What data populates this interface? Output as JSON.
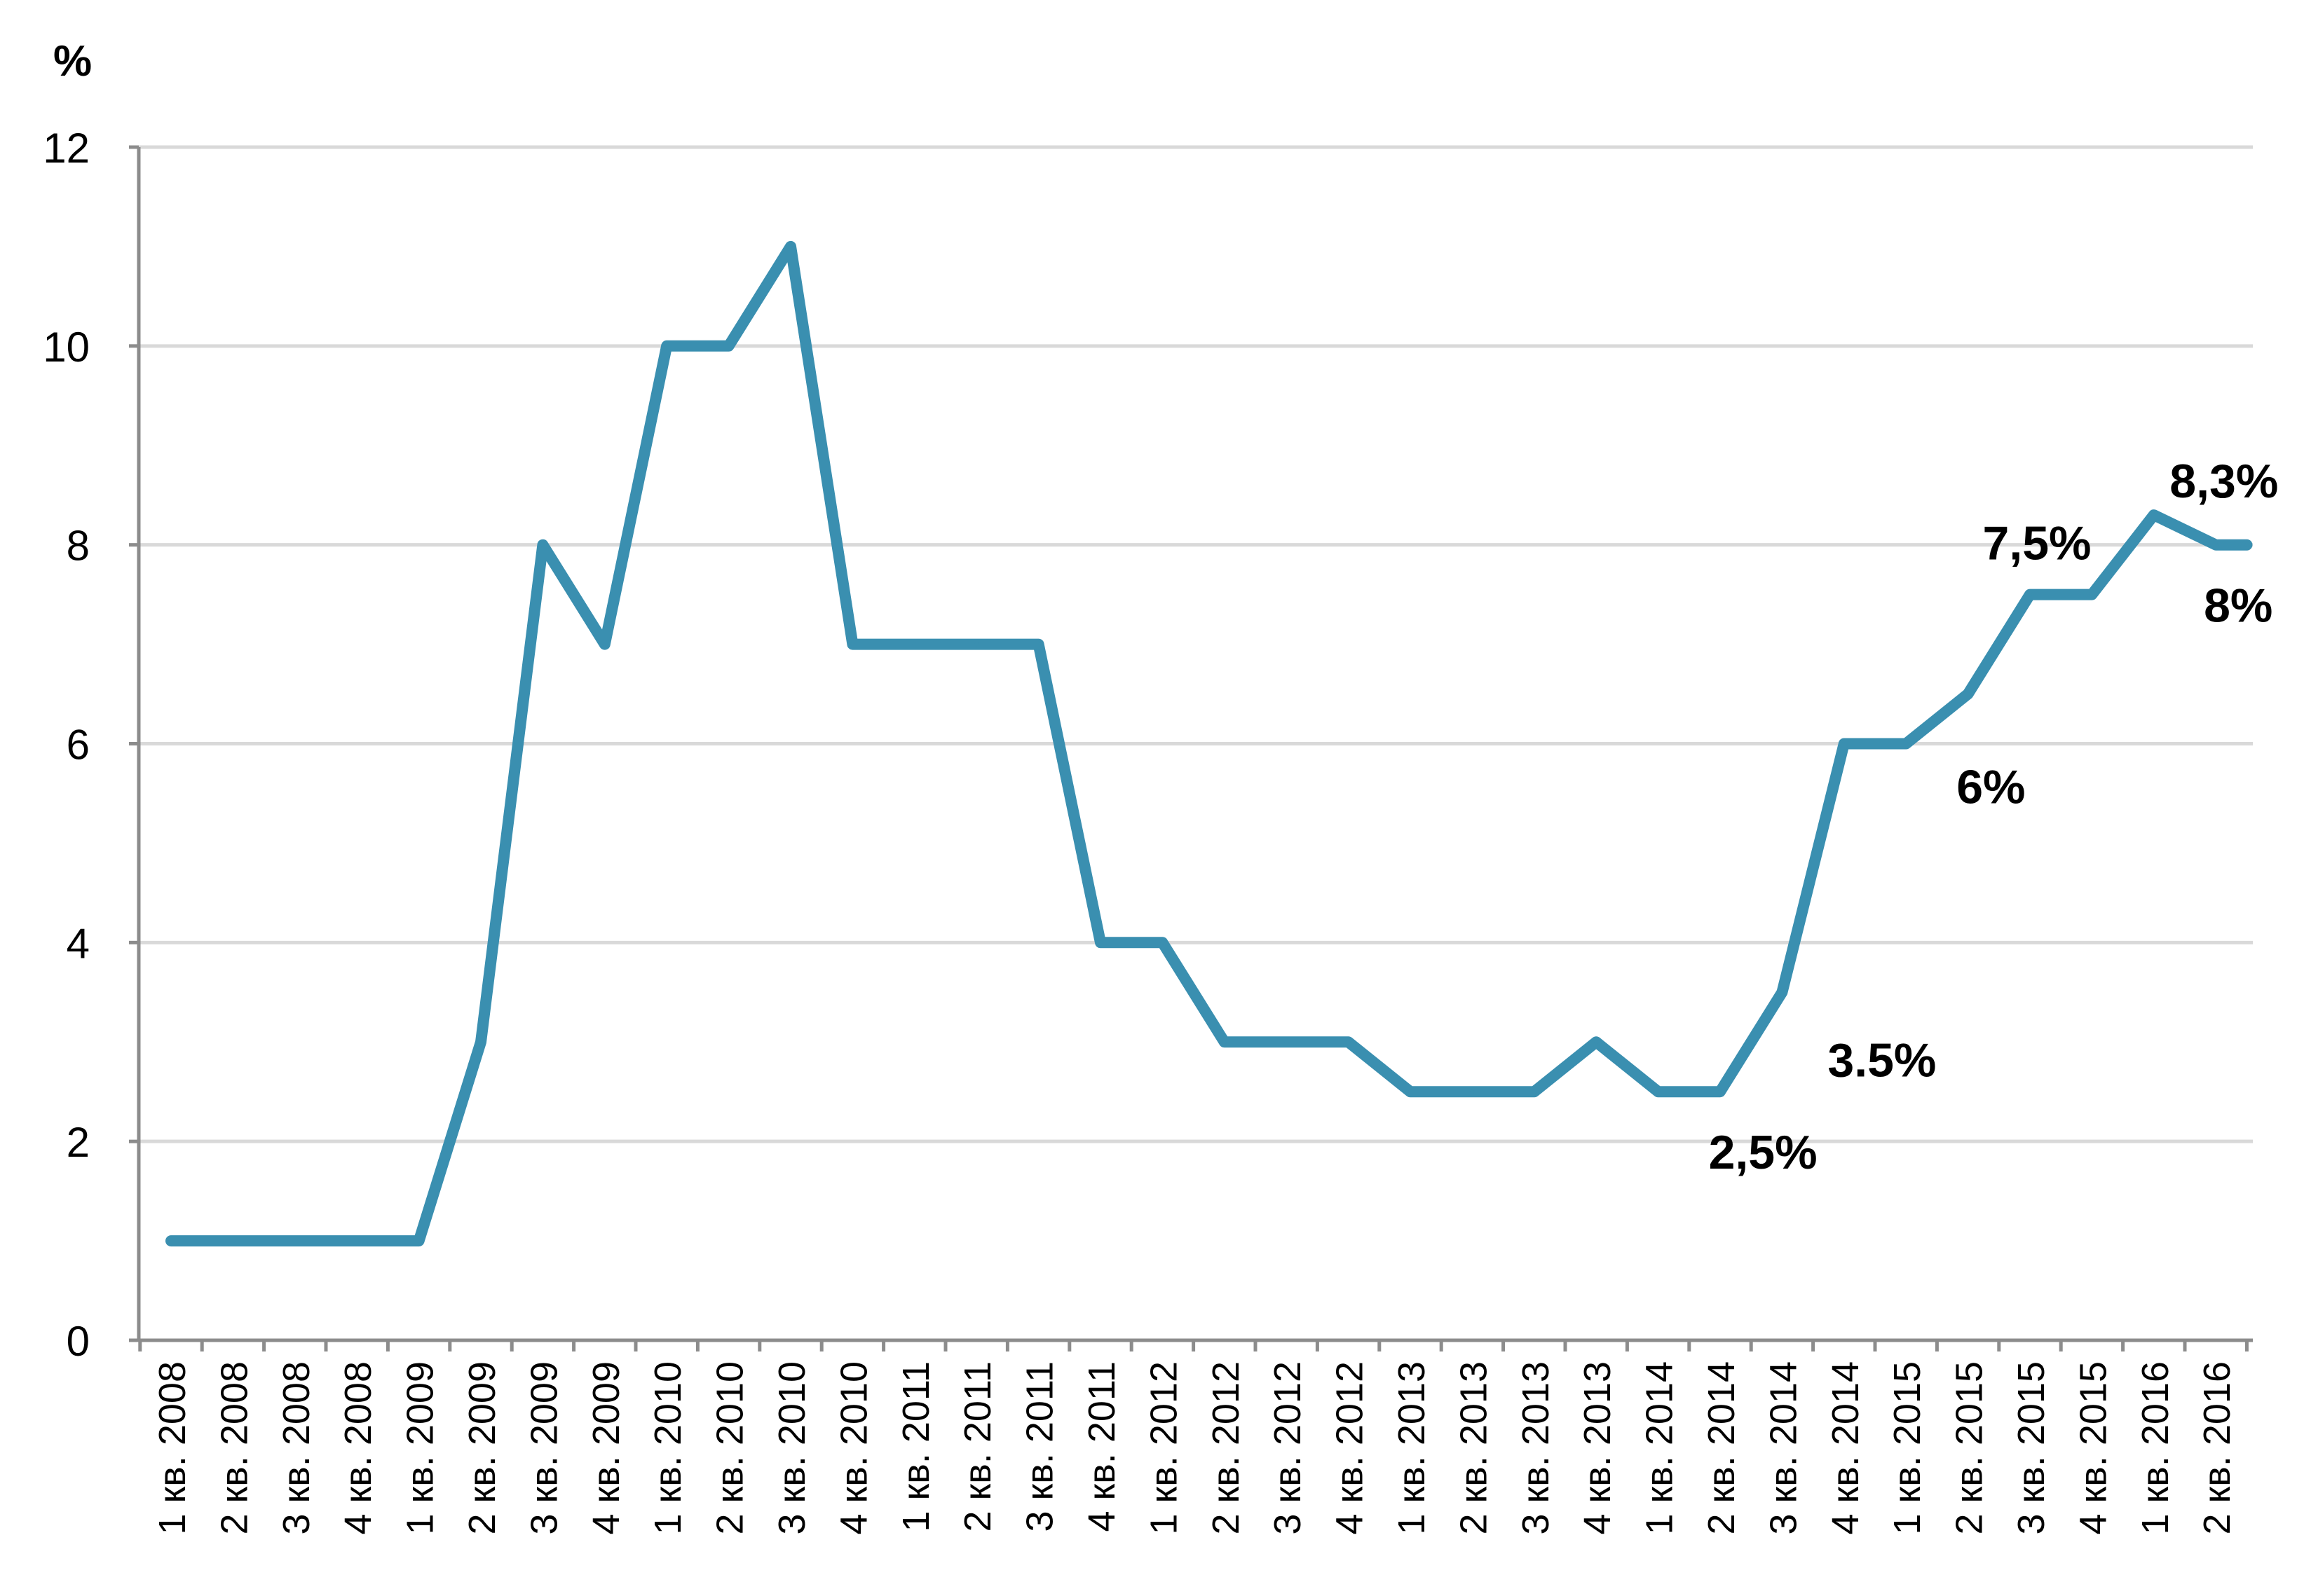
{
  "chart_data": {
    "type": "line",
    "ylabel": "%",
    "ylim": [
      0,
      12
    ],
    "yticks": [
      "0",
      "2",
      "4",
      "6",
      "8",
      "10",
      "12"
    ],
    "grid": true,
    "line_color": "#3a8fb0",
    "categories": [
      "1 кв. 2008",
      "2 кв. 2008",
      "3 кв. 2008",
      "4 кв. 2008",
      "1 кв. 2009",
      "2 кв. 2009",
      "3 кв. 2009",
      "4 кв. 2009",
      "1 кв. 2010",
      "2 кв. 2010",
      "3 кв. 2010",
      "4 кв. 2010",
      "1 кв. 2011",
      "2 кв. 2011",
      "3 кв. 2011",
      "4 кв. 2011",
      "1 кв. 2012",
      "2 кв. 2012",
      "3 кв. 2012",
      "4 кв. 2012",
      "1 кв. 2013",
      "2 кв. 2013",
      "3 кв. 2013",
      "4 кв. 2013",
      "1 кв. 2014",
      "2 кв. 2014",
      "3 кв. 2014",
      "4 кв. 2014",
      "1 кв. 2015",
      "2 кв. 2015",
      "3 кв. 2015",
      "4 кв. 2015",
      "1 кв. 2016",
      "2 кв. 2016"
    ],
    "x": [
      0,
      1,
      2,
      3,
      4,
      5,
      6,
      7,
      8,
      9,
      10,
      11,
      12,
      13,
      14,
      15,
      16,
      17,
      18,
      19,
      20,
      21,
      22,
      23,
      24,
      25,
      26,
      27,
      28,
      29,
      30,
      31,
      32,
      33,
      33.5
    ],
    "values": [
      1,
      1,
      1,
      1,
      1,
      3,
      8,
      7,
      10,
      10,
      11,
      7,
      7,
      7,
      7,
      4,
      4,
      3,
      3,
      3,
      2.5,
      2.5,
      2.5,
      3,
      2.5,
      2.5,
      3.5,
      6,
      6,
      6.5,
      7.5,
      7.5,
      8.3,
      8,
      8
    ],
    "annotations": [
      {
        "text": "2,5%",
        "x": 24,
        "y": 2.5
      },
      {
        "text": "3.5%",
        "x": 26,
        "y": 3.5
      },
      {
        "text": "6%",
        "x": 28,
        "y": 6
      },
      {
        "text": "7,5%",
        "x": 30,
        "y": 7.5
      },
      {
        "text": "8,3%",
        "x": 32,
        "y": 8.3
      },
      {
        "text": "8%",
        "x": 33.5,
        "y": 8
      }
    ]
  }
}
